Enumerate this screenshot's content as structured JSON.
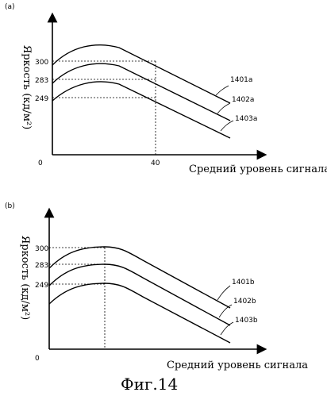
{
  "panel_a": {
    "label": "(a)",
    "ylabel": "Яркость (кд/м²)",
    "xlabel": "Средний уровень сигнала",
    "origin": "0",
    "x_tick": "40",
    "y_ticks": [
      "300",
      "283",
      "249"
    ],
    "curves": [
      "1401a",
      "1402a",
      "1403a"
    ]
  },
  "panel_b": {
    "label": "(b)",
    "ylabel": "Яркость (кд/м²)",
    "xlabel": "Средний уровень сигнала",
    "origin": "0",
    "y_ticks": [
      "300",
      "283",
      "249"
    ],
    "curves": [
      "1401b",
      "1402b",
      "1403b"
    ]
  },
  "caption": "Фиг.14"
}
